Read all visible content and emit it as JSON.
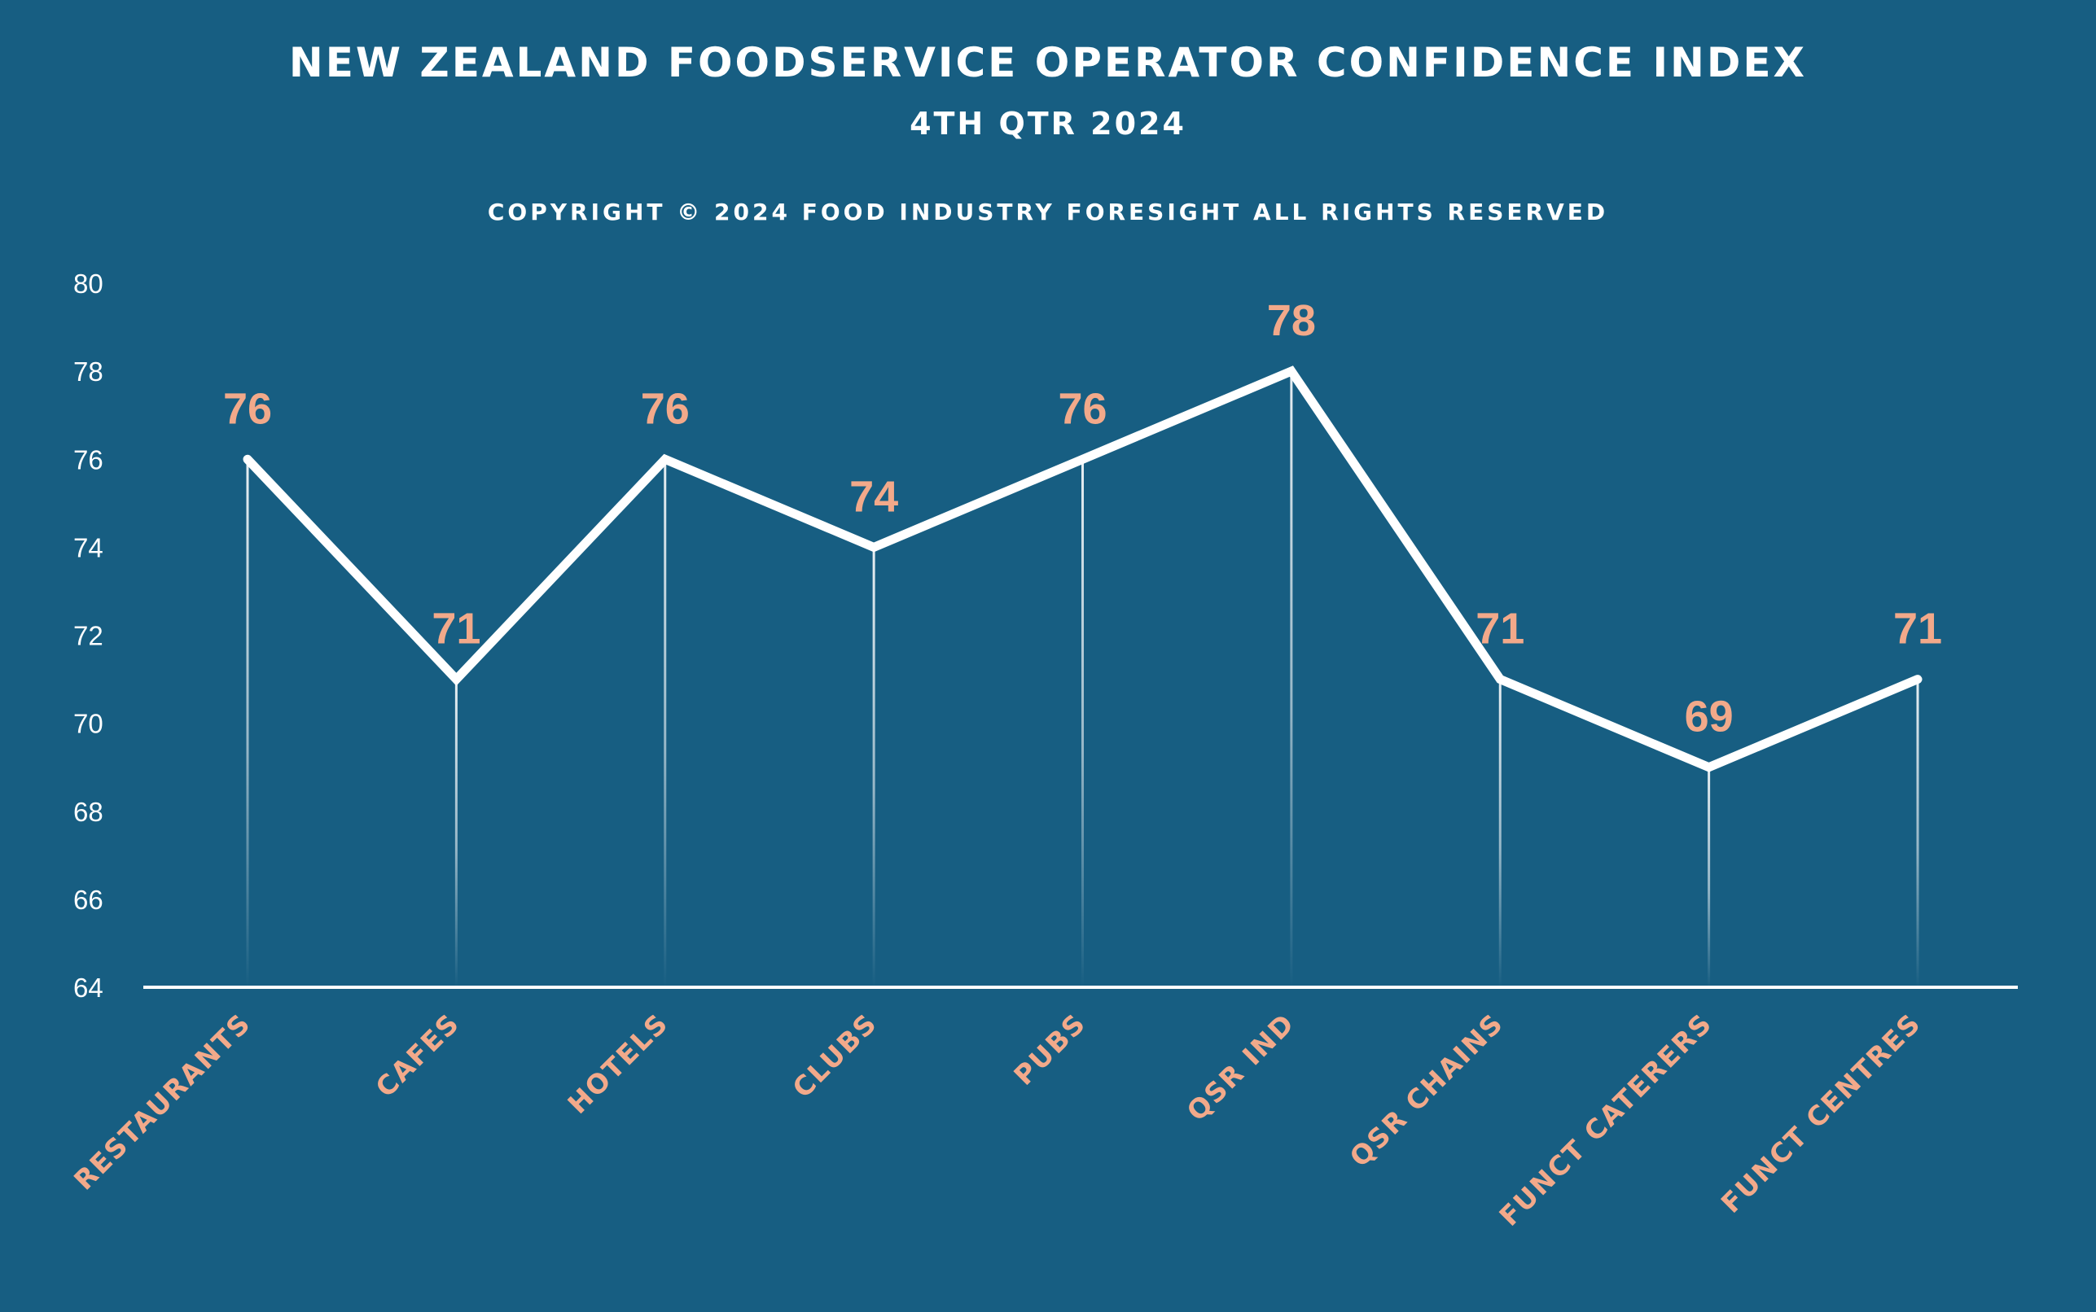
{
  "chart_data": {
    "type": "line",
    "title": "NEW ZEALAND FOODSERVICE OPERATOR CONFIDENCE INDEX",
    "subtitle": "4TH QTR 2024",
    "copyright": "COPYRIGHT © 2024 FOOD INDUSTRY FORESIGHT ALL RIGHTS RESERVED",
    "categories": [
      "RESTAURANTS",
      "CAFES",
      "HOTELS",
      "CLUBS",
      "PUBS",
      "QSR IND",
      "QSR CHAINS",
      "FUNCT CATERERS",
      "FUNCT CENTRES"
    ],
    "values": [
      76,
      71,
      76,
      74,
      76,
      78,
      71,
      69,
      71
    ],
    "ylim": [
      64,
      80
    ],
    "yticks": [
      64,
      66,
      68,
      70,
      72,
      74,
      76,
      78,
      80
    ],
    "xlabel": "",
    "ylabel": "",
    "grid": false,
    "data_labels": true,
    "colors": {
      "background": "#175e82",
      "line": "#ffffff",
      "data_label": "#f2a98a",
      "category_label": "#f2a98a",
      "text": "#ffffff"
    }
  }
}
